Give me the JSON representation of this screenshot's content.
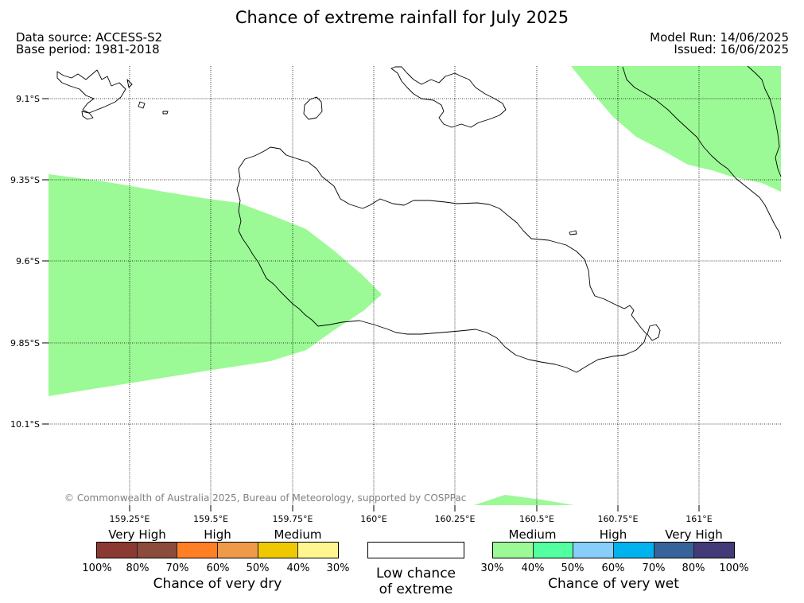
{
  "header": {
    "title": "Chance of extreme rainfall for July 2025",
    "data_source": "Data source: ACCESS-S2",
    "base_period": "Base period: 1981-2018",
    "model_run": "Model Run: 14/06/2025",
    "issued": "Issued: 16/06/2025"
  },
  "map": {
    "lat_labels": [
      "9.1°S",
      "9.35°S",
      "9.6°S",
      "9.85°S",
      "10.1°S"
    ],
    "lon_labels": [
      "159.25°E",
      "159.5°E",
      "159.75°E",
      "160°E",
      "160.25°E",
      "160.5°E",
      "160.75°E",
      "161°E"
    ],
    "regions": [
      {
        "name": "very wet medium 30-40%",
        "color": "#9bfa95"
      }
    ],
    "copyright": "© Commonwealth of Australia 2025, Bureau of Meteorology, supported by COSPPac"
  },
  "legend": {
    "dry": {
      "bands": [
        "Very High",
        "High",
        "Medium"
      ],
      "colors": [
        "#8b3a32",
        "#8b4c3b",
        "#ff7f24",
        "#ee9a49",
        "#eec900",
        "#fff68f"
      ],
      "ticks": [
        "100%",
        "80%",
        "70%",
        "60%",
        "50%",
        "40%",
        "30%"
      ],
      "caption": "Chance of very dry"
    },
    "neutral": {
      "caption_line1": "Low chance",
      "caption_line2": "of extreme"
    },
    "wet": {
      "bands": [
        "Medium",
        "High",
        "Very High"
      ],
      "colors": [
        "#9bfa95",
        "#54ff9f",
        "#87cefa",
        "#00b2ee",
        "#36649a",
        "#433a78"
      ],
      "ticks": [
        "30%",
        "40%",
        "50%",
        "60%",
        "70%",
        "80%",
        "100%"
      ],
      "caption": "Chance of very wet"
    }
  }
}
